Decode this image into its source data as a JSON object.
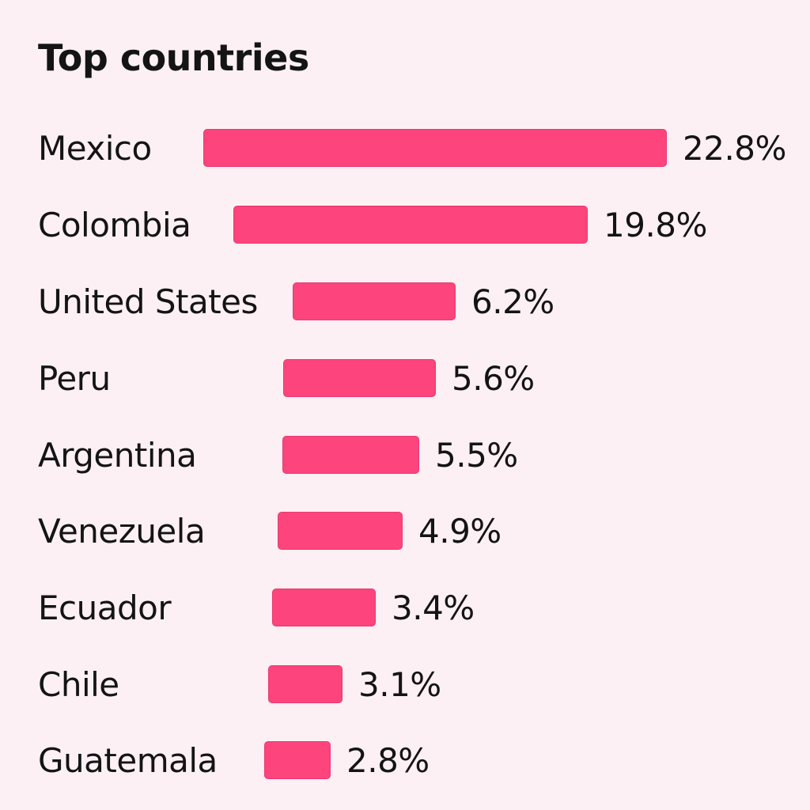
{
  "chart_data": {
    "type": "bar",
    "orientation": "horizontal",
    "title": "Top countries",
    "categories": [
      "Mexico",
      "Colombia",
      "United States",
      "Peru",
      "Argentina",
      "Venezuela",
      "Ecuador",
      "Chile",
      "Guatemala"
    ],
    "values": [
      22.8,
      19.8,
      6.2,
      5.6,
      5.5,
      4.9,
      3.4,
      3.1,
      2.8
    ],
    "value_labels": [
      "22.8%",
      "19.8%",
      "6.2%",
      "5.6%",
      "5.5%",
      "4.9%",
      "3.4%",
      "3.1%",
      "2.8%"
    ],
    "unit": "%",
    "bar_color": "#fd447c",
    "grid": false,
    "legend": "none"
  }
}
